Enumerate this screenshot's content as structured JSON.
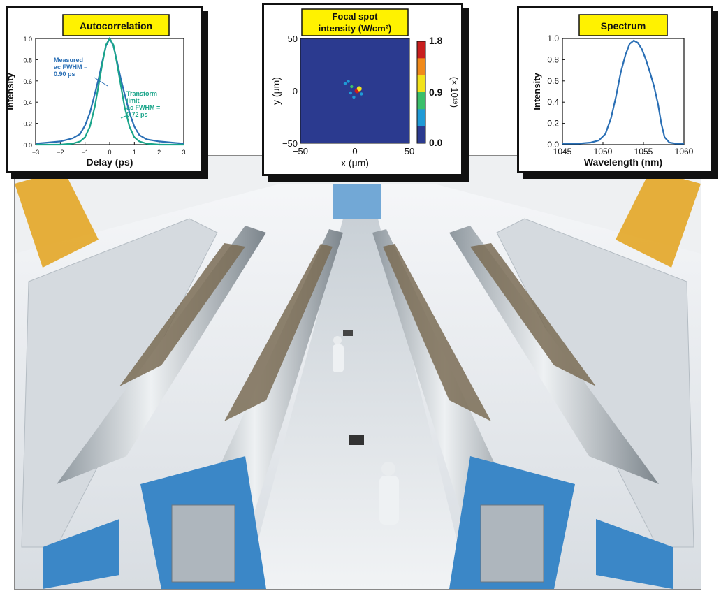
{
  "photo": {
    "description_icon": "laser-bay-photo",
    "colors": {
      "frame_blue": "#3b87c7",
      "tube": "#cfd6dc",
      "floor": "#e6ebef",
      "ceiling": "#f2f4f6",
      "crane_yellow": "#e3a21a"
    }
  },
  "chart_data": [
    {
      "type": "line",
      "title": "Autocorrelation",
      "xlabel": "Delay (ps)",
      "ylabel": "Intensity",
      "xlim": [
        -3,
        3
      ],
      "ylim": [
        0,
        1.0
      ],
      "xticks": [
        -3,
        -2,
        -1,
        0,
        1,
        2,
        3
      ],
      "yticks": [
        0.0,
        0.2,
        0.4,
        0.6,
        0.8,
        1.0
      ],
      "series": [
        {
          "name": "Measured ac FWHM = 0.90 ps",
          "fwhm": 0.9,
          "color": "#2a6fb5",
          "x": [
            -3,
            -2.5,
            -2,
            -1.5,
            -1.2,
            -1,
            -0.8,
            -0.6,
            -0.45,
            -0.3,
            -0.15,
            0,
            0.15,
            0.3,
            0.45,
            0.6,
            0.8,
            1,
            1.2,
            1.5,
            2,
            2.5,
            3
          ],
          "y": [
            0.01,
            0.02,
            0.03,
            0.06,
            0.1,
            0.18,
            0.3,
            0.48,
            0.62,
            0.78,
            0.93,
            1.0,
            0.93,
            0.78,
            0.62,
            0.48,
            0.3,
            0.17,
            0.09,
            0.05,
            0.03,
            0.02,
            0.01
          ]
        },
        {
          "name": "Transform limit ac FWHM = 0.72 ps",
          "fwhm": 0.72,
          "color": "#1aa58a",
          "x": [
            -3,
            -2,
            -1.5,
            -1.2,
            -1,
            -0.8,
            -0.6,
            -0.45,
            -0.3,
            -0.15,
            0,
            0.15,
            0.3,
            0.45,
            0.6,
            0.8,
            1,
            1.2,
            1.5,
            2,
            3
          ],
          "y": [
            0.0,
            0.0,
            0.01,
            0.03,
            0.07,
            0.17,
            0.36,
            0.56,
            0.76,
            0.94,
            1.0,
            0.94,
            0.76,
            0.56,
            0.36,
            0.17,
            0.07,
            0.03,
            0.01,
            0.0,
            0.0
          ]
        }
      ],
      "annotations": {
        "measured": [
          "Measured",
          "ac FWHM =",
          "0.90 ps"
        ],
        "transform": [
          "Transform",
          "limit",
          "ac FWHM =",
          "0.72 ps"
        ]
      }
    },
    {
      "type": "heatmap",
      "title_lines": [
        "Focal spot",
        "intensity (W/cm²)"
      ],
      "xlabel": "x (μm)",
      "ylabel": "y (μm)",
      "xlim": [
        -50,
        50
      ],
      "ylim": [
        -50,
        50
      ],
      "xticks": [
        -50,
        0,
        50
      ],
      "yticks": [
        -50,
        0,
        50
      ],
      "colorbar": {
        "min": 0.0,
        "max": 1.8,
        "ticks": [
          "1.8",
          "0.9",
          "0.0"
        ],
        "scale_label": "(× 10¹⁹)"
      },
      "background_color": "#2b3a8f",
      "spots": [
        {
          "x": 2,
          "y": 0,
          "value": 1.6
        },
        {
          "x": 4,
          "y": 2,
          "value": 1.2
        },
        {
          "x": -3,
          "y": 4,
          "value": 0.6
        },
        {
          "x": -6,
          "y": 9,
          "value": 0.5
        },
        {
          "x": -9,
          "y": 7,
          "value": 0.4
        },
        {
          "x": -1,
          "y": -6,
          "value": 0.5
        },
        {
          "x": 6,
          "y": -3,
          "value": 0.5
        },
        {
          "x": -4,
          "y": -2,
          "value": 0.4
        }
      ]
    },
    {
      "type": "line",
      "title": "Spectrum",
      "xlabel": "Wavelength (nm)",
      "ylabel": "Intensity",
      "xlim": [
        1045,
        1060
      ],
      "ylim": [
        0,
        1.0
      ],
      "xticks": [
        1045,
        1050,
        1055,
        1060
      ],
      "yticks": [
        0.0,
        0.2,
        0.4,
        0.6,
        0.8,
        1.0
      ],
      "series": [
        {
          "color": "#2a6fb5",
          "x": [
            1045,
            1047,
            1048.5,
            1049.5,
            1050.3,
            1051,
            1051.6,
            1052.2,
            1052.8,
            1053.3,
            1053.8,
            1054.3,
            1054.8,
            1055.3,
            1055.8,
            1056.3,
            1056.8,
            1057.2,
            1057.6,
            1058.2,
            1059,
            1060
          ],
          "y": [
            0.01,
            0.01,
            0.02,
            0.04,
            0.1,
            0.25,
            0.45,
            0.68,
            0.85,
            0.95,
            0.98,
            0.96,
            0.9,
            0.8,
            0.68,
            0.55,
            0.38,
            0.2,
            0.07,
            0.02,
            0.01,
            0.01
          ]
        }
      ]
    }
  ]
}
